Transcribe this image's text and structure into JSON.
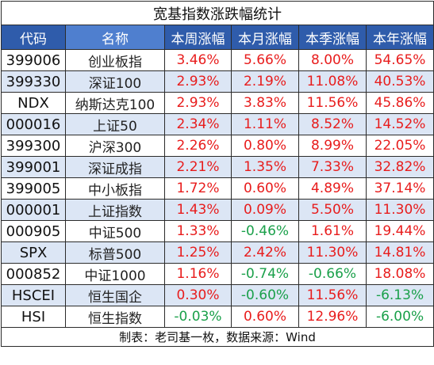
{
  "title": "宽基指数涨跌幅统计",
  "headers": [
    "代码",
    "名称",
    "本周涨幅",
    "本月涨幅",
    "本季涨幅",
    "本年涨幅"
  ],
  "rows": [
    {
      "code": "399006",
      "name": "创业板指",
      "week": "3.46%",
      "month": "5.66%",
      "quarter": "8.00%",
      "year": "54.65%"
    },
    {
      "code": "399330",
      "name": "深证100",
      "week": "2.93%",
      "month": "2.19%",
      "quarter": "11.08%",
      "year": "40.53%"
    },
    {
      "code": "NDX",
      "name": "纳斯达克100",
      "week": "2.93%",
      "month": "3.83%",
      "quarter": "11.56%",
      "year": "45.86%"
    },
    {
      "code": "000016",
      "name": "上证50",
      "week": "2.34%",
      "month": "1.11%",
      "quarter": "8.52%",
      "year": "14.52%"
    },
    {
      "code": "399300",
      "name": "沪深300",
      "week": "2.26%",
      "month": "0.80%",
      "quarter": "8.99%",
      "year": "22.05%"
    },
    {
      "code": "399001",
      "name": "深证成指",
      "week": "2.21%",
      "month": "1.35%",
      "quarter": "7.33%",
      "year": "32.82%"
    },
    {
      "code": "399005",
      "name": "中小板指",
      "week": "1.72%",
      "month": "0.60%",
      "quarter": "4.89%",
      "year": "37.14%"
    },
    {
      "code": "000001",
      "name": "上证指数",
      "week": "1.43%",
      "month": "0.09%",
      "quarter": "5.50%",
      "year": "11.30%"
    },
    {
      "code": "000905",
      "name": "中证500",
      "week": "1.33%",
      "month": "-0.46%",
      "quarter": "1.61%",
      "year": "19.44%"
    },
    {
      "code": "SPX",
      "name": "标普500",
      "week": "1.25%",
      "month": "2.42%",
      "quarter": "11.30%",
      "year": "14.81%"
    },
    {
      "code": "000852",
      "name": "中证1000",
      "week": "1.16%",
      "month": "-0.74%",
      "quarter": "-0.66%",
      "year": "18.08%"
    },
    {
      "code": "HSCEI",
      "name": "恒生国企",
      "week": "0.30%",
      "month": "-0.60%",
      "quarter": "11.56%",
      "year": "-6.13%"
    },
    {
      "code": "HSI",
      "name": "恒生指数",
      "week": "-0.03%",
      "month": "0.60%",
      "quarter": "12.96%",
      "year": "-6.00%"
    }
  ],
  "footer": "制表：老司基一枚，数据来源：Wind",
  "colors": {
    "header": "#4f7fcf",
    "header_dark": "#2f5cab",
    "band": "#dce6f5",
    "positive": "#e81c1c",
    "negative": "#1aa04a"
  }
}
